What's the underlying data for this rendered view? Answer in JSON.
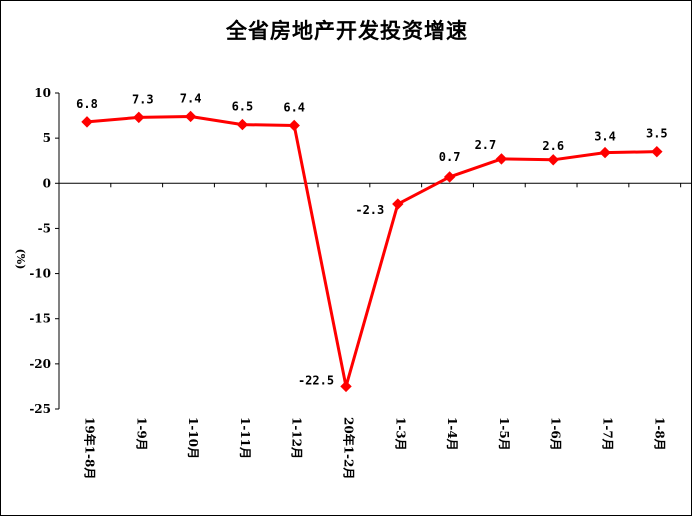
{
  "chart_data": {
    "type": "line",
    "title": "全省房地产开发投资增速",
    "ylabel": "(%)",
    "categories": [
      "19年1-8月",
      "1-9月",
      "1-10月",
      "1-11月",
      "1-12月",
      "20年1-2月",
      "1-3月",
      "1-4月",
      "1-5月",
      "1-6月",
      "1-7月",
      "1-8月"
    ],
    "series": [
      {
        "values": [
          6.8,
          7.3,
          7.4,
          6.5,
          6.4,
          -22.5,
          -2.3,
          0.7,
          2.7,
          2.6,
          3.4,
          3.5
        ]
      }
    ],
    "data_labels": [
      "6.8",
      "7.3",
      "7.4",
      "6.5",
      "6.4",
      "-22.5",
      "-2.3",
      "0.7",
      "2.7",
      "2.6",
      "3.4",
      "3.5"
    ],
    "y_ticks": [
      10,
      5,
      0,
      -5,
      -10,
      -15,
      -20,
      -25
    ],
    "ylim": [
      -25,
      10
    ],
    "grid": false,
    "line_color": "#ff0000",
    "marker": "diamond"
  }
}
